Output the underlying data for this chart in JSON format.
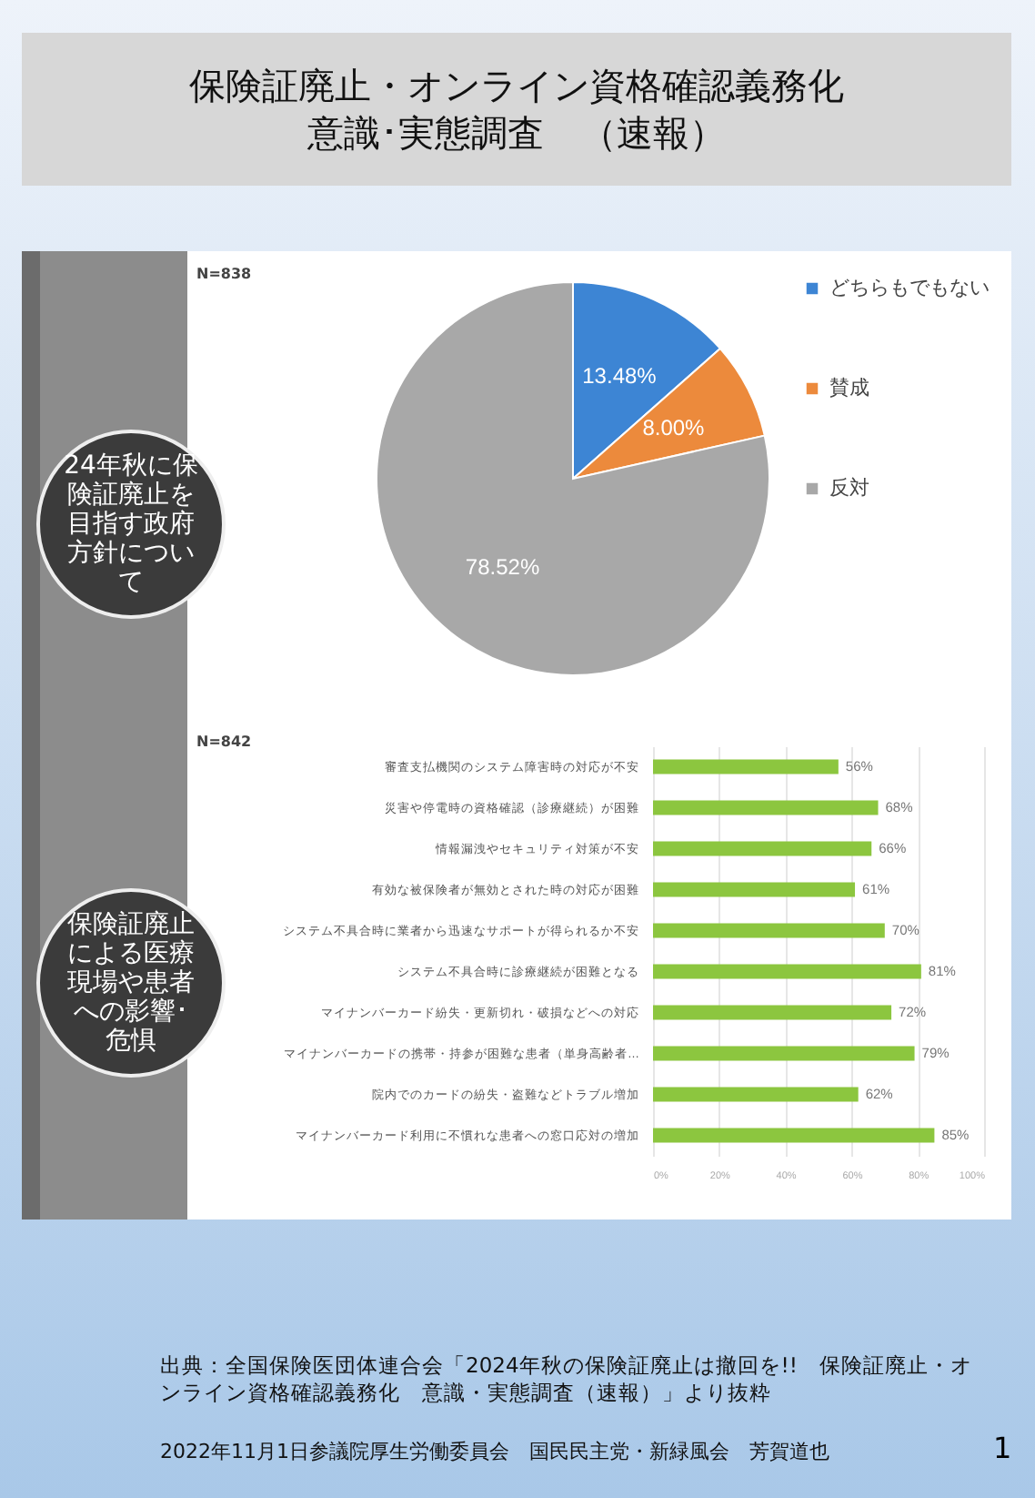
{
  "chart_data": [
    {
      "type": "pie",
      "title": "保険証廃止・オンライン資格確認義務化意識･実態調査　（速報）",
      "subtitle": "24年秋に保険証廃止を目指す政府方針について",
      "categories": [
        "どちらもでもない",
        "賛成",
        "反対"
      ],
      "values": [
        13.48,
        8.0,
        78.52
      ],
      "value_labels": [
        "13.48%",
        "8.00%",
        "78.52%"
      ],
      "colors": [
        "#3d85d4",
        "#ec8a3c",
        "#a8a8a8"
      ],
      "legend": "right",
      "annotations": [
        "N=838"
      ]
    },
    {
      "type": "bar",
      "orientation": "horizontal",
      "subtitle": "保険証廃止による医療現場や患者への影響･危惧",
      "categories": [
        "審査支払機関のシステム障害時の対応が不安",
        "災害や停電時の資格確認（診療継続）が困難",
        "情報漏洩やセキュリティ対策が不安",
        "有効な被保険者が無効とされた時の対応が困難",
        "システム不具合時に業者から迅速なサポートが得られるか不安",
        "システム不具合時に診療継続が困難となる",
        "マイナンバーカード紛失・更新切れ・破損などへの対応",
        "マイナンバーカードの携帯・持参が困難な患者（単身高齢者…",
        "院内でのカードの紛失・盗難などトラブル増加",
        "マイナンバーカード利用に不慣れな患者への窓口応対の増加"
      ],
      "values": [
        56,
        68,
        66,
        61,
        70,
        81,
        72,
        79,
        62,
        85
      ],
      "value_labels": [
        "56%",
        "68%",
        "66%",
        "61%",
        "70%",
        "81%",
        "72%",
        "79%",
        "62%",
        "85%"
      ],
      "color": "#8cc63f",
      "xlim": [
        0,
        100
      ],
      "xticks": [
        {
          "value": 0,
          "label": "0%"
        },
        {
          "value": 20,
          "label": "20%"
        },
        {
          "value": 40,
          "label": "40%"
        },
        {
          "value": 60,
          "label": "60%"
        },
        {
          "value": 80,
          "label": "80%"
        },
        {
          "value": 100,
          "label": "100%"
        }
      ],
      "grid": "x",
      "annotations": [
        "N=842",
        "出典：全国保険医団体連合会「2024年秋の保険証廃止は撤回を!!　保険証廃止・オンライン資格確認義務化　意識・実態調査（速報）」より抜粋",
        "2022年11月1日参議院厚生労働委員会　国民民主党・新緑風会　芳賀道也",
        "1"
      ]
    }
  ]
}
